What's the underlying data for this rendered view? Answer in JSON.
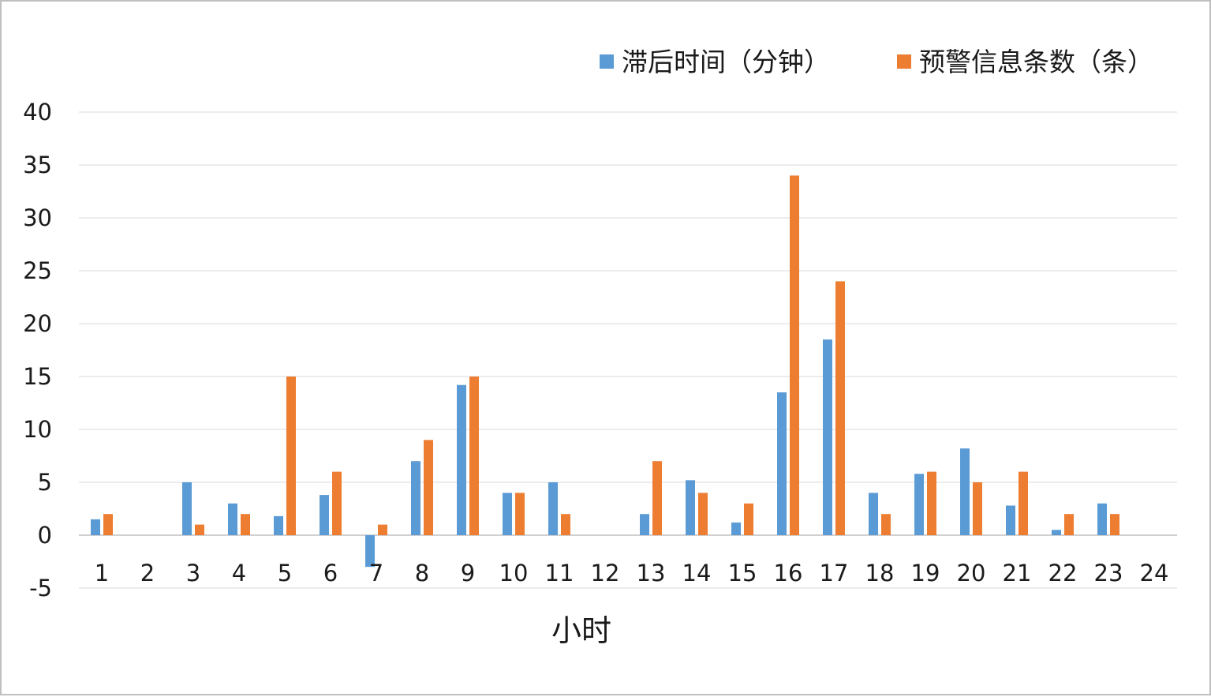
{
  "chart_data": {
    "type": "bar",
    "title": "",
    "xlabel": "小时",
    "ylabel": "",
    "ylim": [
      -5,
      40
    ],
    "yticks": [
      "-5",
      "0",
      "5",
      "10",
      "15",
      "20",
      "25",
      "30",
      "35",
      "40"
    ],
    "grid": true,
    "legend_position": "top-right",
    "categories": [
      "1",
      "2",
      "3",
      "4",
      "5",
      "6",
      "7",
      "8",
      "9",
      "10",
      "11",
      "12",
      "13",
      "14",
      "15",
      "16",
      "17",
      "18",
      "19",
      "20",
      "21",
      "22",
      "23",
      "24"
    ],
    "series": [
      {
        "name": "滞后时间（分钟）",
        "color": "#5b9bd5",
        "values": [
          1.5,
          0,
          5,
          3,
          1.8,
          3.8,
          -3,
          7,
          14.2,
          4,
          5,
          0,
          2,
          5.2,
          1.2,
          13.5,
          18.5,
          4,
          5.8,
          8.2,
          2.8,
          0.5,
          3,
          0
        ]
      },
      {
        "name": "预警信息条数（条）",
        "color": "#ed7d31",
        "values": [
          2,
          0,
          1,
          2,
          15,
          6,
          1,
          9,
          15,
          4,
          2,
          0,
          7,
          4,
          3,
          34,
          24,
          2,
          6,
          5,
          6,
          2,
          2,
          0
        ]
      }
    ]
  }
}
